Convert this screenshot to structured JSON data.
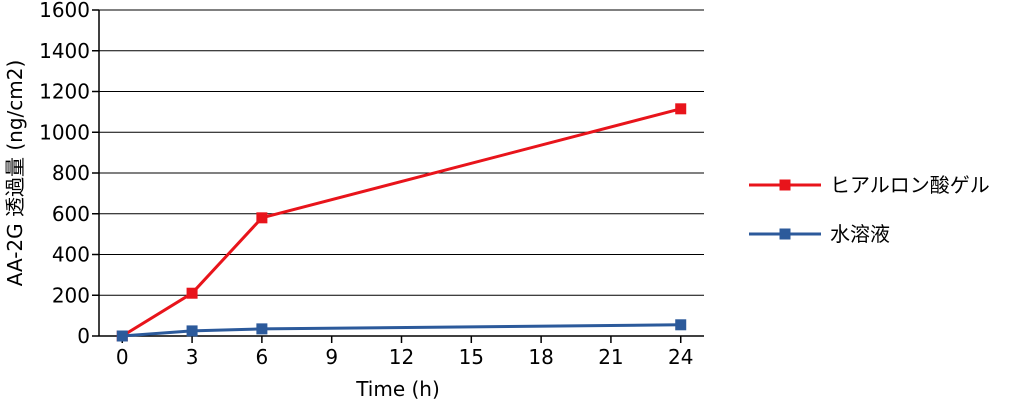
{
  "chart_data": {
    "type": "line",
    "xlabel": "Time (h)",
    "ylabel": "AA-2G 透過量 (ng/cm2)",
    "x": [
      0,
      3,
      6,
      24
    ],
    "xlim": [
      -1,
      25
    ],
    "ylim": [
      0,
      1600
    ],
    "x_ticks": [
      "0",
      "3",
      "6",
      "9",
      "12",
      "15",
      "18",
      "21",
      "24"
    ],
    "y_ticks": [
      "0",
      "200",
      "400",
      "600",
      "800",
      "1000",
      "1200",
      "1400",
      "1600"
    ],
    "grid": true,
    "legend_position": "right",
    "series": [
      {
        "name": "ヒアルロン酸ゲル",
        "color": "#e8141b",
        "marker": "square",
        "values": [
          0,
          210,
          580,
          1115
        ]
      },
      {
        "name": "水溶液",
        "color": "#2c5a9b",
        "marker": "square",
        "values": [
          0,
          25,
          35,
          55
        ]
      }
    ]
  }
}
